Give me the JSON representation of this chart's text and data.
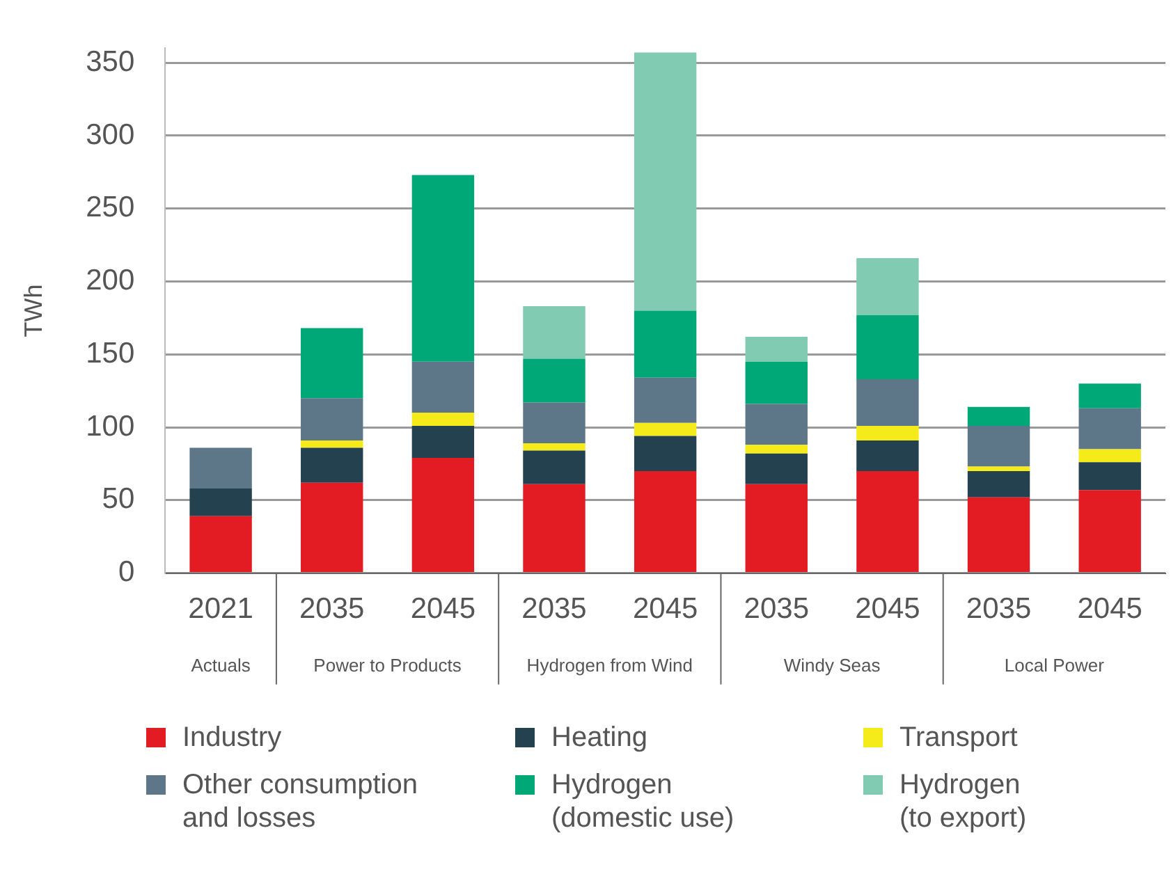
{
  "chart_data": {
    "type": "bar",
    "stacked": true,
    "ylabel": "TWh",
    "categories": [
      "2021",
      "2035",
      "2045",
      "2035",
      "2045",
      "2035",
      "2045",
      "2035",
      "2045"
    ],
    "annotations": [
      "Actuals",
      "Power to Products",
      "Hydrogen from Wind",
      "Windy Seas",
      "Local Power"
    ],
    "series": [
      {
        "name": "Industry",
        "color": "#e31b23",
        "values": [
          39,
          62,
          79,
          61,
          70,
          61,
          70,
          52,
          57
        ]
      },
      {
        "name": "Heating",
        "color": "#24414f",
        "values": [
          19,
          24,
          22,
          23,
          24,
          21,
          21,
          18,
          19
        ]
      },
      {
        "name": "Transport",
        "color": "#f5eb1a",
        "values": [
          null,
          5,
          9,
          5,
          9,
          6,
          10,
          3,
          9
        ]
      },
      {
        "name": "Other consumption and losses",
        "color": "#5d7688",
        "values": [
          28,
          29,
          35,
          28,
          31,
          28,
          32,
          28,
          28
        ]
      },
      {
        "name": "Hydrogen (domestic use)",
        "color": "#00a878",
        "values": [
          null,
          48,
          128,
          30,
          46,
          29,
          44,
          13,
          17
        ]
      },
      {
        "name": "Hydrogen (to export)",
        "color": "#80cbb1",
        "values": [
          null,
          null,
          null,
          36,
          177,
          17,
          39,
          null,
          null
        ]
      }
    ],
    "ylim": [
      0,
      360
    ],
    "yticks": [
      0,
      50,
      100,
      150,
      200,
      250,
      300,
      350
    ],
    "grid": "y",
    "legend": "bottom"
  }
}
